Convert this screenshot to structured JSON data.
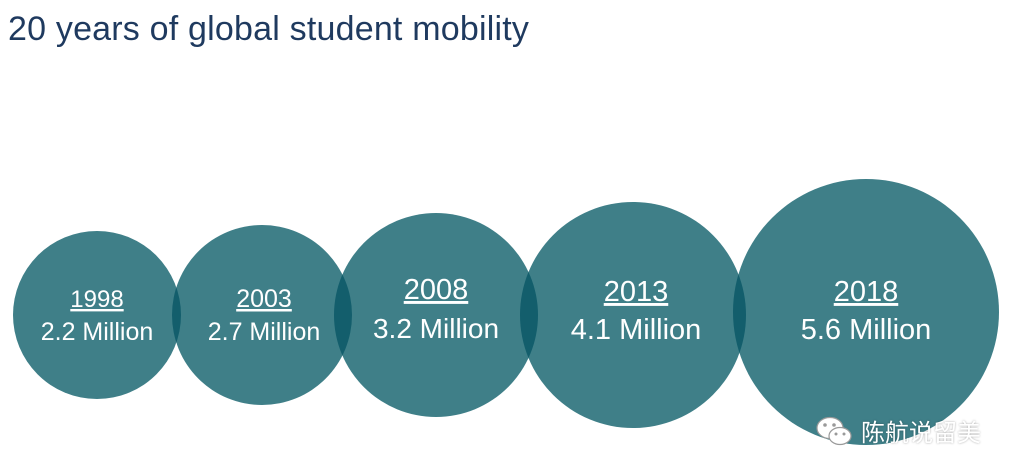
{
  "title": "20 years of global student mobility",
  "accent_color": "#3f7f88",
  "overlap_color": "#135e6c",
  "bubbles": [
    {
      "year": "1998",
      "value": "2.2 Million",
      "millions": 2.2
    },
    {
      "year": "2003",
      "value": "2.7 Million",
      "millions": 2.7
    },
    {
      "year": "2008",
      "value": "3.2 Million",
      "millions": 3.2
    },
    {
      "year": "2013",
      "value": "4.1 Million",
      "millions": 4.1
    },
    {
      "year": "2018",
      "value": "5.6 Million",
      "millions": 5.6
    }
  ],
  "watermark": {
    "text": "陈航说留美",
    "icon": "wechat-icon"
  }
}
